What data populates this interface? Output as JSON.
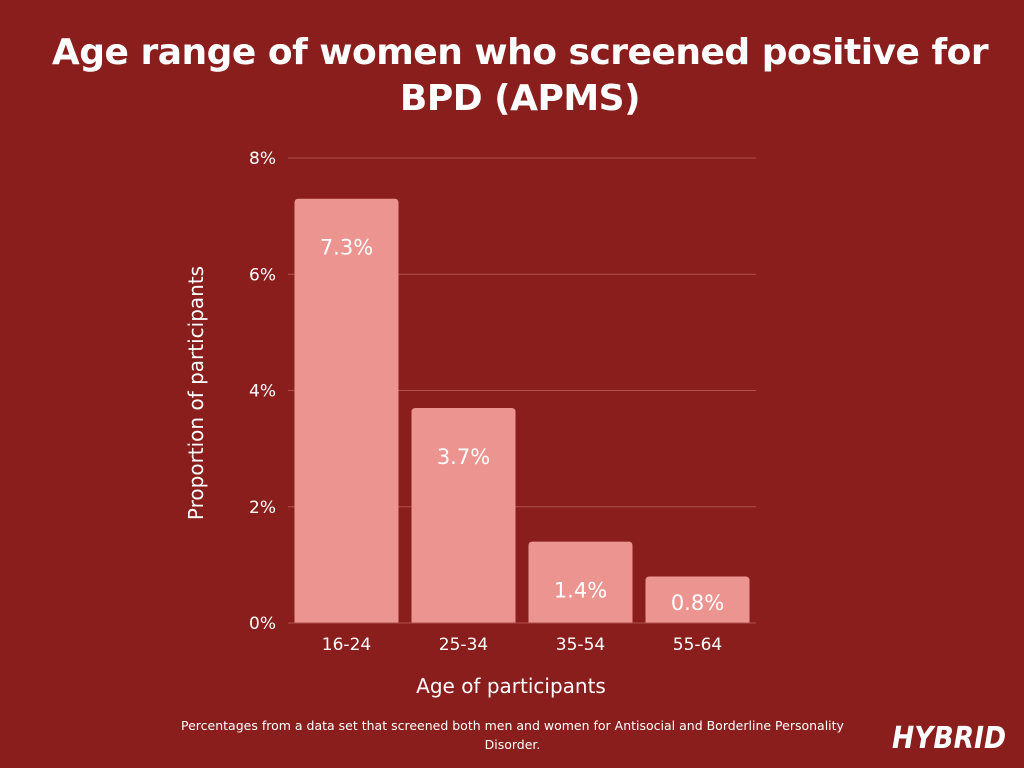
{
  "title": "Age range of women who screened positive for BPD (APMS)",
  "footnote": "Percentages from a data set that screened both men and women for Antisocial and Borderline Personality Disorder.",
  "brand": {
    "logo_text": "HYBRID"
  },
  "colors": {
    "background": "#8a1e1c",
    "bar": "#ec9590",
    "text": "#ffffff",
    "gridline": "#b0504c"
  },
  "chart_data": {
    "type": "bar",
    "categories": [
      "16-24",
      "25-34",
      "35-54",
      "55-64"
    ],
    "values": [
      7.3,
      3.7,
      1.4,
      0.8
    ],
    "data_labels": [
      "7.3%",
      "3.7%",
      "1.4%",
      "0.8%"
    ],
    "title": "Age range of women who screened positive for BPD (APMS)",
    "xlabel": "Age of participants",
    "ylabel": "Proportion of participants",
    "ylim": [
      0,
      8
    ],
    "yticks": [
      0,
      2,
      4,
      6,
      8
    ],
    "ytick_labels": [
      "0%",
      "2%",
      "4%",
      "6%",
      "8%"
    ],
    "grid": true,
    "legend": "none"
  }
}
